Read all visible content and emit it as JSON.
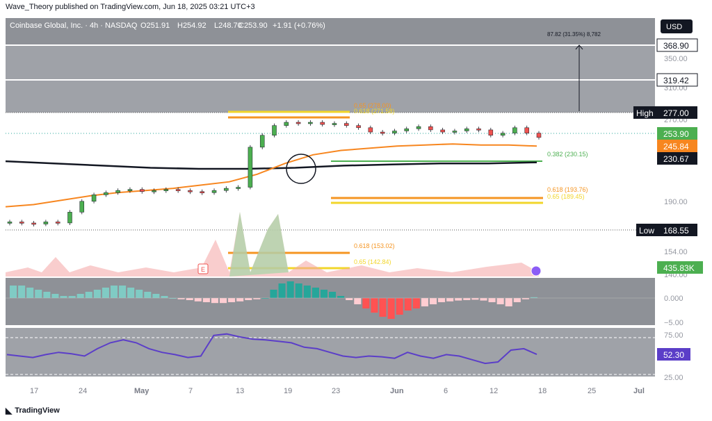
{
  "header": {
    "published": "Wave_Theory published on TradingView.com, Jun 18, 2025 03:21 UTC+3",
    "symbol": "Coinbase Global, Inc. · 4h · NASDAQ",
    "open": "O251.91",
    "high": "H254.92",
    "low": "L248.70",
    "close": "C253.90",
    "change": "+1.91 (+0.76%)",
    "currency": "USD"
  },
  "footer": {
    "brand": "TradingView"
  },
  "price_axis": {
    "ticks": [
      "350.00",
      "310.00",
      "270.00",
      "190.00",
      "154.00",
      "140.00"
    ],
    "badges": {
      "level_368": "368.90",
      "level_319": "319.42",
      "high_label": "High",
      "high": "277.00",
      "last": "253.90",
      "ema50": "245.84",
      "ema200": "230.67",
      "low_label": "Low",
      "low": "168.55",
      "volume": "435.83K"
    }
  },
  "annotations": {
    "measure": "87.82 (31.35%) 8,782",
    "fib_065_top": "0.65 (278.00)",
    "fib_0618_top": "0.618 (271.58)",
    "fib_0382": "0.382 (230.15)",
    "fib_0618_mid": "0.618 (193.76)",
    "fib_065_mid": "0.65 (189.45)",
    "fib_0618_low": "0.618 (153.02)",
    "fib_065_low": "0.65 (142.84)",
    "earnings_marker": "E"
  },
  "macd_axis": {
    "ticks": [
      "0.000",
      "−5.00"
    ]
  },
  "rsi_axis": {
    "ticks": [
      "75.00",
      "25.00"
    ],
    "value": "52.30"
  },
  "time_axis": [
    "17",
    "24",
    "May",
    "7",
    "13",
    "19",
    "23",
    "Jun",
    "6",
    "12",
    "18",
    "25",
    "Jul"
  ],
  "colors": {
    "up": "#26a69a",
    "up_candle": "#4caf50",
    "down": "#ef5350",
    "ema50": "#f7861f",
    "ema200": "#131722",
    "fib_gold": "#f2d62a",
    "fib_orange": "#f59522",
    "rsi": "#5b3ec8"
  },
  "chart_data": [
    {
      "type": "line",
      "title": "Coinbase Global, Inc. · 4h · NASDAQ",
      "close_approx": [
        176,
        175,
        174,
        176,
        175,
        185,
        195,
        201,
        203,
        205,
        206,
        204,
        205,
        206,
        205,
        204,
        203,
        205,
        207,
        208,
        245,
        256,
        265,
        268,
        267,
        268,
        266,
        267,
        265,
        263,
        259,
        258,
        260,
        262,
        264,
        261,
        259,
        260,
        262,
        261,
        256,
        258,
        263,
        258,
        254
      ],
      "ema50_approx": [
        190,
        192,
        196,
        200,
        203,
        205,
        207,
        210,
        213,
        220,
        230,
        238,
        242,
        244,
        246,
        247,
        248,
        247,
        247,
        246
      ],
      "ema200_approx": [
        232,
        230,
        228,
        226,
        225,
        225,
        226,
        228,
        229,
        230,
        230,
        231
      ],
      "levels": {
        "368.90": 368.9,
        "319.42": 319.42,
        "high": 277.0,
        "low": 168.55,
        "last": 253.9,
        "ema50": 245.84,
        "ema200": 230.67
      },
      "fib_levels": [
        {
          "label": "0.65",
          "value": 278.0
        },
        {
          "label": "0.618",
          "value": 271.58
        },
        {
          "label": "0.382",
          "value": 230.15
        },
        {
          "label": "0.618",
          "value": 193.76
        },
        {
          "label": "0.65",
          "value": 189.45
        },
        {
          "label": "0.618",
          "value": 153.02
        },
        {
          "label": "0.65",
          "value": 142.84
        }
      ],
      "measure": {
        "change": 87.82,
        "percent": 31.35,
        "ticks": 8782
      }
    },
    {
      "type": "bar",
      "title": "MACD histogram",
      "values": [
        3,
        3,
        2.5,
        2,
        1.5,
        1,
        0.5,
        0.5,
        1,
        1.5,
        2,
        2.5,
        3,
        3,
        2.5,
        2,
        1.5,
        1,
        0.5,
        0,
        -0.3,
        -0.5,
        -0.8,
        -1,
        -1.2,
        -1.2,
        -1,
        -0.8,
        -0.5,
        -0.3,
        0,
        2,
        3.5,
        4,
        3.5,
        3,
        2.5,
        2,
        1.5,
        0.5,
        -0.5,
        -1.5,
        -2.5,
        -3.5,
        -4.5,
        -5,
        -4,
        -3,
        -2.5,
        -2,
        -1.5,
        -1,
        -0.8,
        -0.6,
        -0.5,
        -0.4,
        -0.6,
        -1,
        -1.5,
        -2,
        -1,
        -0.3,
        0.2
      ]
    },
    {
      "type": "line",
      "title": "RSI",
      "values": [
        52,
        50,
        48,
        52,
        55,
        53,
        50,
        60,
        68,
        72,
        68,
        60,
        55,
        52,
        48,
        50,
        78,
        80,
        76,
        73,
        72,
        70,
        68,
        62,
        60,
        55,
        50,
        48,
        50,
        49,
        47,
        55,
        50,
        47,
        52,
        50,
        45,
        40,
        42,
        58,
        60,
        52.3
      ],
      "ylim": [
        25,
        75
      ]
    }
  ]
}
